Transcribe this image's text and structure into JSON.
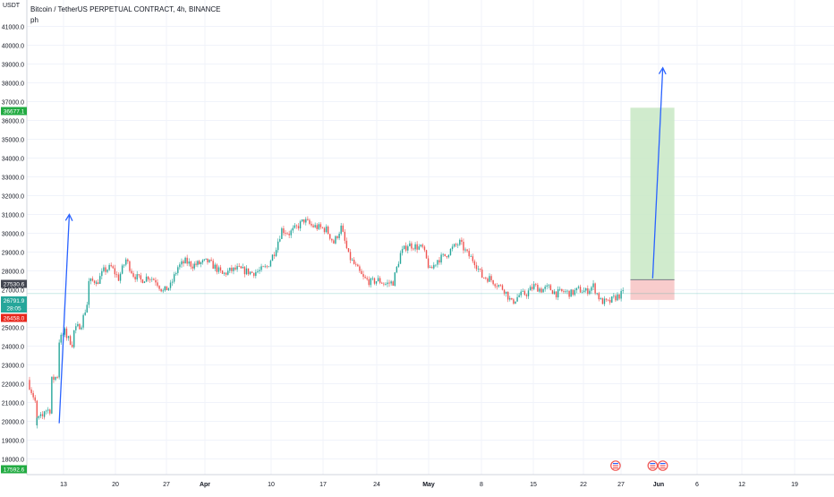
{
  "header": {
    "symbol_line": "Bitcoin / TetherUS PERPETUAL CONTRACT, 4h, BINANCE",
    "indicator": "ph",
    "currency": "USDT"
  },
  "colors": {
    "up": "#26a69a",
    "down": "#ef5350",
    "arrow": "#2962ff",
    "last_price_bg": "#26a69a",
    "target_bg": "#22ab42",
    "entry_bg": "#434651",
    "stop_bg": "#e8271c",
    "low_bg": "#22ab42",
    "profit_zone": "#c8e8c4",
    "loss_zone": "#f7c6c6"
  },
  "chart_data": {
    "type": "candlestick",
    "title": "Bitcoin / TetherUS PERPETUAL CONTRACT, 4h, BINANCE",
    "ylim": [
      17000,
      42000
    ],
    "y_axis_side": "left",
    "y_ticks": [
      18000,
      19000,
      20000,
      21000,
      22000,
      23000,
      24000,
      25000,
      26000,
      27000,
      28000,
      29000,
      30000,
      31000,
      32000,
      33000,
      34000,
      35000,
      36000,
      37000,
      38000,
      39000,
      40000,
      41000
    ],
    "x_tick_labels": [
      "13",
      "20",
      "27",
      "Apr",
      "10",
      "17",
      "24",
      "May",
      "8",
      "15",
      "22",
      "27",
      "Jun",
      "6",
      "12",
      "19"
    ],
    "x_tick_bold": [
      "Apr",
      "May",
      "Jun"
    ],
    "price_path": [
      [
        "Mar 9",
        22200
      ],
      [
        "Mar 9",
        21900
      ],
      [
        "Mar 10",
        20800
      ],
      [
        "Mar 10",
        19700
      ],
      [
        "Mar 10",
        20100
      ],
      [
        "Mar 11",
        20300
      ],
      [
        "Mar 11",
        20600
      ],
      [
        "Mar 12",
        20600
      ],
      [
        "Mar 12",
        22200
      ],
      [
        "Mar 13",
        22500
      ],
      [
        "Mar 13",
        24300
      ],
      [
        "Mar 14",
        24900
      ],
      [
        "Mar 14",
        24500
      ],
      [
        "Mar 15",
        24000
      ],
      [
        "Mar 15",
        24800
      ],
      [
        "Mar 16",
        25200
      ],
      [
        "Mar 17",
        26600
      ],
      [
        "Mar 17",
        27400
      ],
      [
        "Mar 18",
        27500
      ],
      [
        "Mar 18",
        27300
      ],
      [
        "Mar 19",
        28000
      ],
      [
        "Mar 20",
        28200
      ],
      [
        "Mar 21",
        27600
      ],
      [
        "Mar 22",
        28600
      ],
      [
        "Mar 23",
        27800
      ],
      [
        "Mar 24",
        27500
      ],
      [
        "Mar 25",
        27700
      ],
      [
        "Mar 26",
        27500
      ],
      [
        "Mar 27",
        26900
      ],
      [
        "Mar 28",
        27200
      ],
      [
        "Mar 29",
        28200
      ],
      [
        "Mar 30",
        28500
      ],
      [
        "Mar 31",
        28300
      ],
      [
        "Apr 1",
        28500
      ],
      [
        "Apr 2",
        28200
      ],
      [
        "Apr 3",
        27800
      ],
      [
        "Apr 4",
        28000
      ],
      [
        "Apr 5",
        28100
      ],
      [
        "Apr 6",
        28000
      ],
      [
        "Apr 7",
        27900
      ],
      [
        "Apr 8",
        28000
      ],
      [
        "Apr 9",
        28200
      ],
      [
        "Apr 10",
        29000
      ],
      [
        "Apr 11",
        30200
      ],
      [
        "Apr 12",
        30000
      ],
      [
        "Apr 13",
        30300
      ],
      [
        "Apr 14",
        30700
      ],
      [
        "Apr 15",
        30400
      ],
      [
        "Apr 16",
        30300
      ],
      [
        "Apr 17",
        30200
      ],
      [
        "Apr 18",
        29500
      ],
      [
        "Apr 19",
        30300
      ],
      [
        "Apr 20",
        28800
      ],
      [
        "Apr 21",
        28200
      ],
      [
        "Apr 22",
        27600
      ],
      [
        "Apr 23",
        27400
      ],
      [
        "Apr 24",
        27500
      ],
      [
        "Apr 25",
        27300
      ],
      [
        "Apr 26",
        27400
      ],
      [
        "Apr 27",
        28900
      ],
      [
        "Apr 28",
        29400
      ],
      [
        "Apr 29",
        29300
      ],
      [
        "Apr 30",
        29200
      ],
      [
        "May 1",
        28000
      ],
      [
        "May 2",
        28600
      ],
      [
        "May 3",
        28800
      ],
      [
        "May 4",
        29200
      ],
      [
        "May 5",
        29500
      ],
      [
        "May 6",
        28900
      ],
      [
        "May 7",
        28500
      ],
      [
        "May 8",
        27700
      ],
      [
        "May 9",
        27600
      ],
      [
        "May 10",
        27300
      ],
      [
        "May 11",
        27000
      ],
      [
        "May 12",
        26300
      ],
      [
        "May 13",
        26700
      ],
      [
        "May 14",
        26800
      ],
      [
        "May 15",
        27200
      ],
      [
        "May 16",
        27000
      ],
      [
        "May 17",
        27100
      ],
      [
        "May 18",
        26800
      ],
      [
        "May 19",
        26900
      ],
      [
        "May 20",
        26800
      ],
      [
        "May 21",
        27000
      ],
      [
        "May 22",
        26900
      ],
      [
        "May 23",
        27200
      ],
      [
        "May 24",
        26400
      ],
      [
        "May 25",
        26300
      ],
      [
        "May 26",
        26600
      ],
      [
        "May 27",
        26800
      ]
    ],
    "annotations": {
      "long_position": {
        "start": "May 28",
        "end": "Jun 1",
        "target": 36677.1,
        "entry": 27530.6,
        "stop": 26458.0
      },
      "arrow_1": {
        "from": [
          "Mar 13",
          19900
        ],
        "to": [
          "Mar 14",
          31000
        ]
      },
      "arrow_2": {
        "from": [
          "May 31",
          27600
        ],
        "to": [
          "Jun 1",
          38800
        ]
      },
      "current_price_line": 26791.9,
      "event_markers": [
        "May 26",
        "May 31",
        "Jun 1"
      ]
    },
    "price_labels": [
      {
        "key": "target",
        "value": "36677.1"
      },
      {
        "key": "entry",
        "value": "27530.6"
      },
      {
        "key": "last",
        "value": "26791.9",
        "sub": "28:05"
      },
      {
        "key": "stop",
        "value": "26458.0"
      },
      {
        "key": "low",
        "value": "17592.6"
      }
    ]
  }
}
